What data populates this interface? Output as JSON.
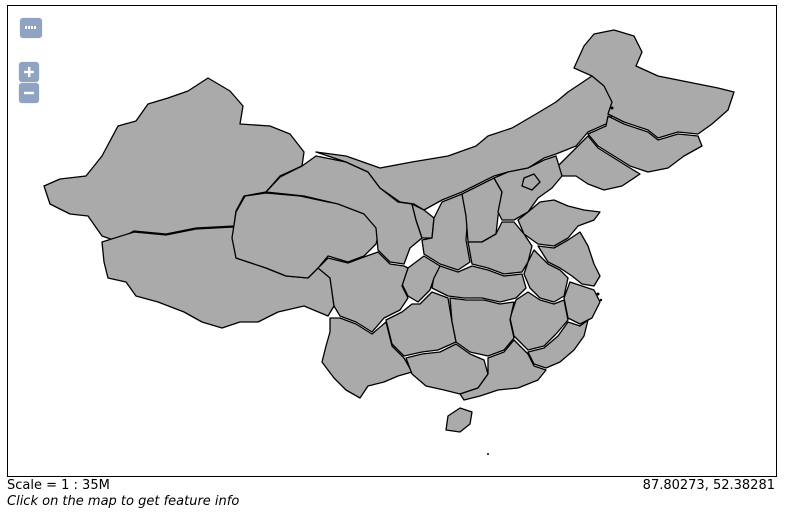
{
  "map": {
    "fill_color": "#aaaaaa",
    "stroke_color": "#000000",
    "control_color": "#90a3c2"
  },
  "controls": {
    "layer_switcher_icon": "layers-icon",
    "zoom_in_icon": "plus-icon",
    "zoom_out_icon": "minus-icon"
  },
  "status": {
    "scale": "Scale = 1 : 35M",
    "coordinates": "87.80273, 52.38281",
    "hint": "Click on the map to get feature info"
  }
}
